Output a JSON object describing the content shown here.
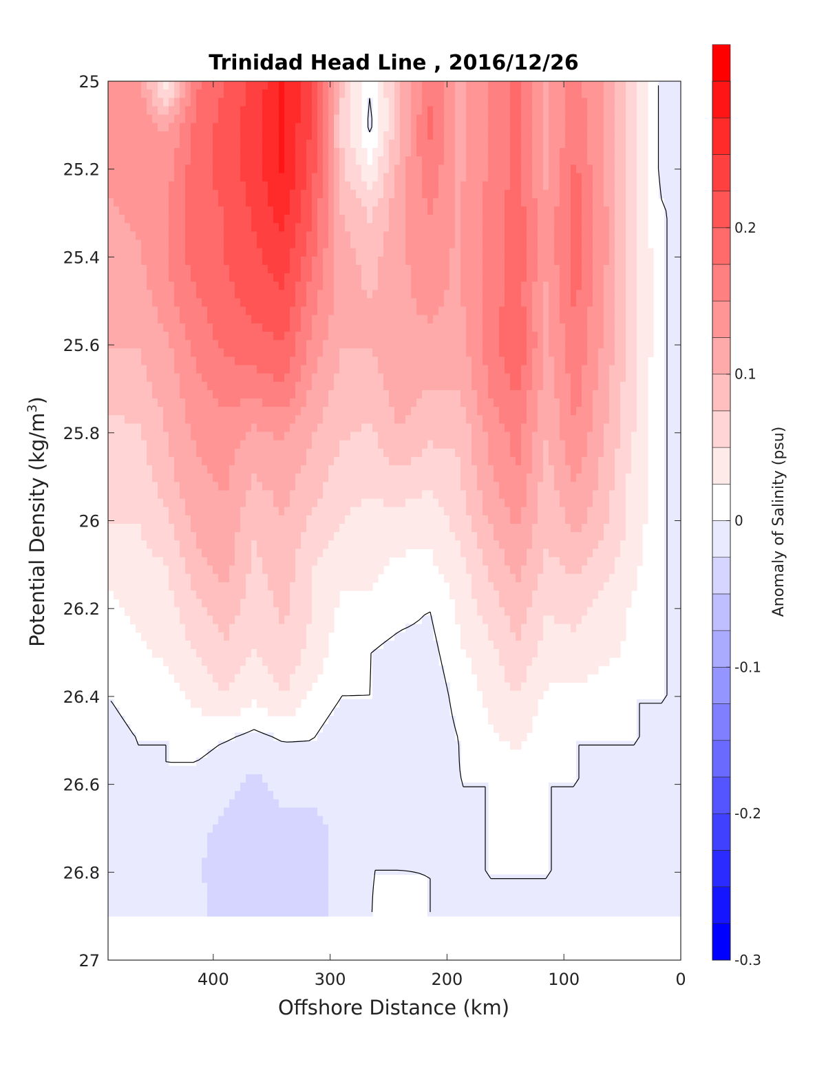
{
  "chart_data": {
    "type": "heatmap",
    "title": "Trinidad Head Line , 2016/12/26",
    "xlabel": "Offshore Distance (km)",
    "ylabel_main": "Potential Density (kg/m",
    "ylabel_sup": "3",
    "ylabel_close": ")",
    "xlim": [
      490,
      0
    ],
    "ylim": [
      25,
      27
    ],
    "y_reversed": true,
    "x_reversed": true,
    "x_ticks": [
      400,
      300,
      200,
      100,
      0
    ],
    "y_ticks": [
      "25",
      "25.2",
      "25.4",
      "25.6",
      "25.8",
      "26",
      "26.2",
      "26.4",
      "26.6",
      "26.8",
      "27"
    ],
    "y_tick_values": [
      25,
      25.2,
      25.4,
      25.6,
      25.8,
      26,
      26.2,
      26.4,
      26.6,
      26.8,
      27
    ],
    "colorbar": {
      "label": "Anomaly of Salinity (psu)",
      "range": [
        -0.3,
        0.3
      ],
      "ticks": [
        "0.2",
        "0.1",
        "0",
        "-0.1",
        "-0.2",
        "-0.3"
      ],
      "tick_values": [
        0.2,
        0.1,
        0,
        -0.1,
        -0.2,
        -0.3
      ],
      "step": 0.025,
      "colors": [
        "#0000ff",
        "#1515ff",
        "#2b2bff",
        "#4040ff",
        "#5555ff",
        "#6a6aff",
        "#8080ff",
        "#9595ff",
        "#aaaaff",
        "#bfbfff",
        "#d5d5ff",
        "#eaeaff",
        "#ffffff",
        "#ffeaea",
        "#ffd5d5",
        "#ffbfbf",
        "#ffaaaa",
        "#ff9595",
        "#ff8080",
        "#ff6a6a",
        "#ff5555",
        "#ff4040",
        "#ff2b2b",
        "#ff1515",
        "#ff0000"
      ]
    },
    "data_bottom_density": 26.9,
    "columns_km": [
      490,
      465,
      440,
      415,
      390,
      365,
      340,
      315,
      290,
      265,
      240,
      215,
      190,
      165,
      140,
      115,
      90,
      65,
      40,
      15
    ],
    "density_rows": [
      25.0,
      25.1,
      25.2,
      25.3,
      25.4,
      25.5,
      25.6,
      25.7,
      25.8,
      25.9,
      26.0,
      26.1,
      26.2,
      26.3,
      26.4,
      26.5,
      26.6,
      26.7,
      26.8,
      26.9
    ],
    "anomaly_grid": [
      [
        0.14,
        0.15,
        0.02,
        0.17,
        0.2,
        0.23,
        0.28,
        0.23,
        0.08,
        0.0,
        0.1,
        0.17,
        0.12,
        0.15,
        0.18,
        0.12,
        0.16,
        0.12,
        0.05,
        -0.01
      ],
      [
        0.13,
        0.14,
        0.12,
        0.18,
        0.21,
        0.24,
        0.28,
        0.22,
        0.07,
        -0.01,
        0.1,
        0.18,
        0.12,
        0.15,
        0.18,
        0.12,
        0.17,
        0.12,
        0.05,
        -0.01
      ],
      [
        0.13,
        0.14,
        0.14,
        0.19,
        0.21,
        0.24,
        0.28,
        0.21,
        0.08,
        0.03,
        0.11,
        0.17,
        0.12,
        0.15,
        0.18,
        0.12,
        0.18,
        0.12,
        0.05,
        -0.01
      ],
      [
        0.12,
        0.13,
        0.15,
        0.19,
        0.2,
        0.23,
        0.26,
        0.2,
        0.1,
        0.07,
        0.12,
        0.15,
        0.12,
        0.16,
        0.19,
        0.13,
        0.19,
        0.13,
        0.05,
        0.0
      ],
      [
        0.12,
        0.12,
        0.15,
        0.19,
        0.2,
        0.22,
        0.24,
        0.18,
        0.11,
        0.09,
        0.12,
        0.14,
        0.12,
        0.16,
        0.19,
        0.13,
        0.19,
        0.13,
        0.06,
        0.0
      ],
      [
        0.11,
        0.11,
        0.14,
        0.17,
        0.19,
        0.21,
        0.22,
        0.16,
        0.11,
        0.1,
        0.12,
        0.13,
        0.12,
        0.16,
        0.19,
        0.12,
        0.18,
        0.12,
        0.06,
        0.0
      ],
      [
        0.1,
        0.1,
        0.12,
        0.16,
        0.18,
        0.19,
        0.2,
        0.14,
        0.1,
        0.1,
        0.12,
        0.12,
        0.11,
        0.16,
        0.2,
        0.12,
        0.17,
        0.12,
        0.06,
        0.0
      ],
      [
        0.08,
        0.09,
        0.11,
        0.14,
        0.16,
        0.16,
        0.17,
        0.12,
        0.09,
        0.09,
        0.11,
        0.1,
        0.1,
        0.15,
        0.18,
        0.11,
        0.16,
        0.11,
        0.05,
        0.0
      ],
      [
        0.07,
        0.07,
        0.1,
        0.13,
        0.14,
        0.12,
        0.13,
        0.1,
        0.08,
        0.07,
        0.1,
        0.08,
        0.08,
        0.13,
        0.16,
        0.1,
        0.15,
        0.1,
        0.05,
        0.0
      ],
      [
        0.06,
        0.06,
        0.09,
        0.12,
        0.13,
        0.1,
        0.11,
        0.09,
        0.06,
        0.06,
        0.07,
        0.06,
        0.07,
        0.12,
        0.15,
        0.09,
        0.13,
        0.09,
        0.04,
        0.0
      ],
      [
        0.05,
        0.05,
        0.07,
        0.11,
        0.12,
        0.08,
        0.1,
        0.07,
        0.05,
        0.04,
        0.04,
        0.03,
        0.06,
        0.1,
        0.13,
        0.08,
        0.11,
        0.08,
        0.04,
        0.0
      ],
      [
        0.03,
        0.04,
        0.05,
        0.09,
        0.11,
        0.07,
        0.09,
        0.05,
        0.03,
        0.03,
        0.02,
        0.02,
        0.04,
        0.08,
        0.11,
        0.07,
        0.08,
        0.06,
        0.03,
        0.0
      ],
      [
        0.02,
        0.03,
        0.04,
        0.07,
        0.09,
        0.06,
        0.08,
        0.05,
        0.02,
        0.02,
        0.01,
        0.0,
        0.03,
        0.06,
        0.09,
        0.05,
        0.06,
        0.04,
        0.02,
        0.0
      ],
      [
        0.02,
        0.02,
        0.03,
        0.05,
        0.07,
        0.05,
        0.07,
        0.04,
        0.01,
        0.0,
        -0.01,
        -0.01,
        0.02,
        0.04,
        0.07,
        0.04,
        0.04,
        0.03,
        0.02,
        0.0
      ],
      [
        0.0,
        0.01,
        0.01,
        0.03,
        0.05,
        0.03,
        0.05,
        0.02,
        0.0,
        0.0,
        -0.01,
        -0.02,
        0.01,
        0.03,
        0.05,
        0.02,
        0.02,
        0.01,
        0.0,
        0.0
      ],
      [
        -0.01,
        0.0,
        0.0,
        0.01,
        0.0,
        -0.01,
        0.0,
        0.0,
        -0.02,
        -0.01,
        -0.01,
        -0.02,
        0.0,
        0.02,
        0.03,
        0.01,
        0.0,
        0.0,
        0.0,
        0.0
      ],
      [
        0.0,
        0.0,
        0.0,
        -0.01,
        -0.02,
        -0.03,
        -0.02,
        -0.02,
        -0.01,
        0.0,
        0.0,
        -0.02,
        0.0,
        0.0,
        0.01,
        0.0,
        0.0,
        0.0,
        0.0,
        0.0
      ],
      [
        0.0,
        0.0,
        -0.01,
        -0.02,
        -0.03,
        -0.04,
        -0.03,
        -0.03,
        -0.02,
        0.0,
        0.0,
        -0.01,
        0.0,
        0.0,
        0.02,
        0.0,
        0.0,
        -0.01,
        0.0,
        0.0
      ],
      [
        0.0,
        0.0,
        -0.02,
        -0.02,
        -0.04,
        -0.04,
        -0.04,
        -0.03,
        -0.02,
        0.0,
        0.0,
        0.0,
        0.0,
        0.0,
        0.0,
        0.0,
        0.0,
        0.0,
        0.0,
        0.0
      ],
      [
        0.0,
        0.0,
        -0.02,
        -0.02,
        -0.03,
        -0.03,
        -0.04,
        -0.03,
        -0.02,
        0.0,
        0.01,
        0.0,
        0.0,
        0.0,
        0.0,
        0.0,
        0.0,
        0.0,
        0.0,
        0.0
      ]
    ]
  }
}
